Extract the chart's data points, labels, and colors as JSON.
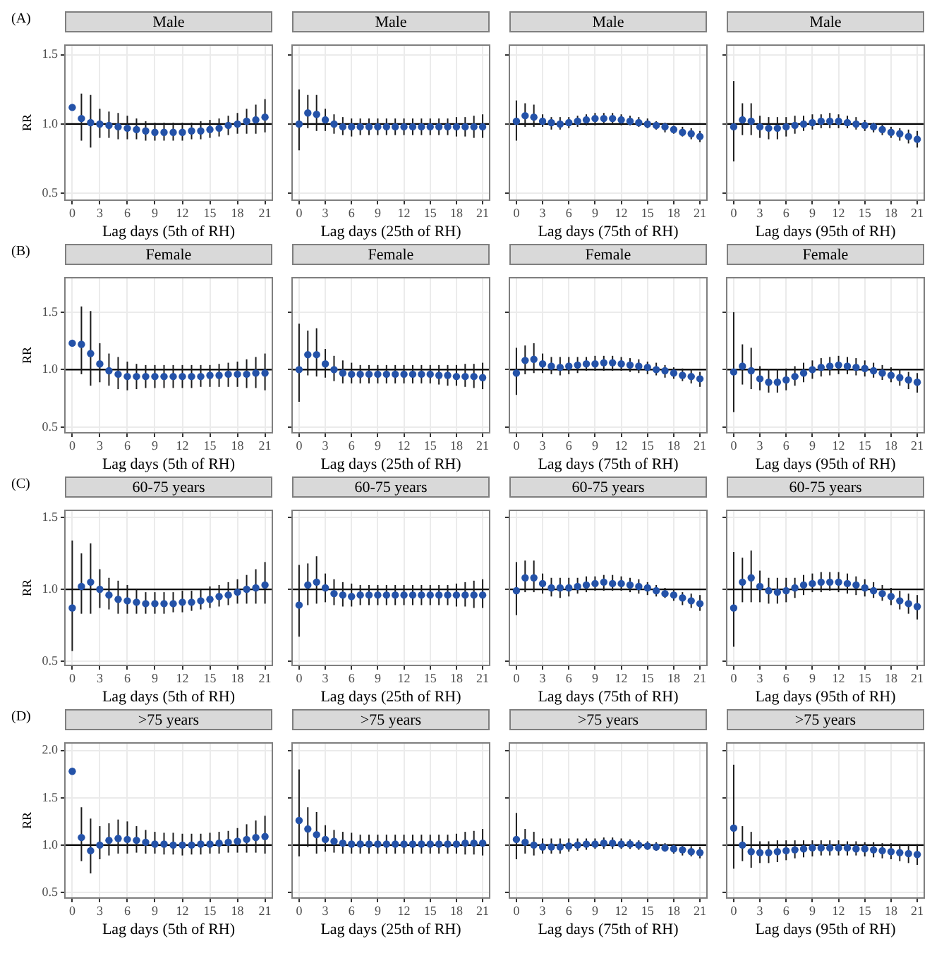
{
  "chart_data": [
    {
      "type": "scatter",
      "title": "Male",
      "annotations": [
        "(A)"
      ],
      "xlabel": "Lag days (5th of RH)",
      "ylabel": "RR",
      "color": "#2452a8",
      "marker": "circle",
      "grid": true,
      "x": [
        0,
        1,
        2,
        3,
        4,
        5,
        6,
        7,
        8,
        9,
        10,
        11,
        12,
        13,
        14,
        15,
        16,
        17,
        18,
        19,
        20,
        21
      ],
      "xlim": [
        -0.8,
        21.8
      ],
      "xticks": [
        0,
        3,
        6,
        9,
        12,
        15,
        18,
        21
      ],
      "ylim": [
        0.45,
        1.57
      ],
      "yticks": [
        {
          "value": 0.5,
          "label": "0.5"
        },
        {
          "value": 1,
          "label": "1.0"
        },
        {
          "value": 1.5,
          "label": "1.5"
        }
      ],
      "ref_lines": [
        {
          "axis": "y",
          "value": 1
        }
      ],
      "values": [
        1.12,
        1.04,
        1.01,
        1.0,
        0.99,
        0.98,
        0.97,
        0.96,
        0.95,
        0.94,
        0.94,
        0.94,
        0.94,
        0.95,
        0.95,
        0.96,
        0.97,
        0.99,
        1.0,
        1.02,
        1.03,
        1.05
      ],
      "errors": [
        null,
        [
          0.88,
          1.22
        ],
        [
          0.83,
          1.21
        ],
        [
          0.9,
          1.11
        ],
        [
          0.9,
          1.09
        ],
        [
          0.89,
          1.08
        ],
        [
          0.89,
          1.06
        ],
        [
          0.89,
          1.04
        ],
        [
          0.88,
          1.02
        ],
        [
          0.88,
          1.01
        ],
        [
          0.88,
          1.01
        ],
        [
          0.88,
          1.01
        ],
        [
          0.88,
          1.01
        ],
        [
          0.89,
          1.01
        ],
        [
          0.89,
          1.02
        ],
        [
          0.9,
          1.03
        ],
        [
          0.91,
          1.04
        ],
        [
          0.92,
          1.06
        ],
        [
          0.93,
          1.08
        ],
        [
          0.93,
          1.11
        ],
        [
          0.93,
          1.14
        ],
        [
          0.94,
          1.18
        ]
      ]
    },
    {
      "type": "scatter",
      "title": "Male",
      "xlabel": "Lag days (25th of RH)",
      "tick_labels": "x",
      "color": "#2452a8",
      "marker": "circle",
      "grid": true,
      "x": [
        0,
        1,
        2,
        3,
        4,
        5,
        6,
        7,
        8,
        9,
        10,
        11,
        12,
        13,
        14,
        15,
        16,
        17,
        18,
        19,
        20,
        21
      ],
      "xlim": [
        -0.8,
        21.8
      ],
      "xticks": [
        0,
        3,
        6,
        9,
        12,
        15,
        18,
        21
      ],
      "ylim": [
        0.45,
        1.57
      ],
      "yticks": [
        0.5,
        1,
        1.5
      ],
      "ref_lines": [
        {
          "axis": "y",
          "value": 1
        }
      ],
      "values": [
        1.0,
        1.08,
        1.07,
        1.03,
        1.0,
        0.98,
        0.98,
        0.98,
        0.98,
        0.98,
        0.98,
        0.98,
        0.98,
        0.98,
        0.98,
        0.98,
        0.98,
        0.98,
        0.98,
        0.98,
        0.98,
        0.98
      ],
      "errors": [
        [
          0.81,
          1.25
        ],
        [
          0.97,
          1.21
        ],
        [
          0.95,
          1.21
        ],
        [
          0.95,
          1.11
        ],
        [
          0.93,
          1.07
        ],
        [
          0.92,
          1.05
        ],
        [
          0.91,
          1.04
        ],
        [
          0.92,
          1.04
        ],
        [
          0.92,
          1.04
        ],
        [
          0.92,
          1.04
        ],
        [
          0.92,
          1.04
        ],
        [
          0.92,
          1.04
        ],
        [
          0.92,
          1.04
        ],
        [
          0.92,
          1.04
        ],
        [
          0.92,
          1.04
        ],
        [
          0.92,
          1.04
        ],
        [
          0.92,
          1.04
        ],
        [
          0.92,
          1.04
        ],
        [
          0.91,
          1.05
        ],
        [
          0.91,
          1.05
        ],
        [
          0.9,
          1.06
        ],
        [
          0.9,
          1.07
        ]
      ]
    },
    {
      "type": "scatter",
      "title": "Male",
      "xlabel": "Lag days (75th of RH)",
      "tick_labels": "x",
      "color": "#2452a8",
      "marker": "circle",
      "grid": true,
      "x": [
        0,
        1,
        2,
        3,
        4,
        5,
        6,
        7,
        8,
        9,
        10,
        11,
        12,
        13,
        14,
        15,
        16,
        17,
        18,
        19,
        20,
        21
      ],
      "xlim": [
        -0.8,
        21.8
      ],
      "xticks": [
        0,
        3,
        6,
        9,
        12,
        15,
        18,
        21
      ],
      "ylim": [
        0.45,
        1.57
      ],
      "yticks": [
        0.5,
        1,
        1.5
      ],
      "ref_lines": [
        {
          "axis": "y",
          "value": 1
        }
      ],
      "values": [
        1.02,
        1.06,
        1.05,
        1.02,
        1.01,
        1.0,
        1.01,
        1.02,
        1.03,
        1.04,
        1.04,
        1.04,
        1.03,
        1.02,
        1.01,
        1.0,
        0.99,
        0.98,
        0.96,
        0.94,
        0.93,
        0.91
      ],
      "errors": [
        [
          0.88,
          1.17
        ],
        [
          0.98,
          1.15
        ],
        [
          0.98,
          1.14
        ],
        [
          0.98,
          1.07
        ],
        [
          0.96,
          1.05
        ],
        [
          0.96,
          1.05
        ],
        [
          0.97,
          1.05
        ],
        [
          0.98,
          1.06
        ],
        [
          0.99,
          1.07
        ],
        [
          0.99,
          1.08
        ],
        [
          1.0,
          1.08
        ],
        [
          1.0,
          1.08
        ],
        [
          0.99,
          1.07
        ],
        [
          0.99,
          1.06
        ],
        [
          0.98,
          1.05
        ],
        [
          0.97,
          1.04
        ],
        [
          0.96,
          1.02
        ],
        [
          0.94,
          1.01
        ],
        [
          0.93,
          0.99
        ],
        [
          0.91,
          0.98
        ],
        [
          0.89,
          0.97
        ],
        [
          0.87,
          0.95
        ]
      ]
    },
    {
      "type": "scatter",
      "title": "Male",
      "xlabel": "Lag days (95th of RH)",
      "tick_labels": "x",
      "color": "#2452a8",
      "marker": "circle",
      "grid": true,
      "x": [
        0,
        1,
        2,
        3,
        4,
        5,
        6,
        7,
        8,
        9,
        10,
        11,
        12,
        13,
        14,
        15,
        16,
        17,
        18,
        19,
        20,
        21
      ],
      "xlim": [
        -0.8,
        21.8
      ],
      "xticks": [
        0,
        3,
        6,
        9,
        12,
        15,
        18,
        21
      ],
      "ylim": [
        0.45,
        1.57
      ],
      "yticks": [
        0.5,
        1,
        1.5
      ],
      "ref_lines": [
        {
          "axis": "y",
          "value": 1
        }
      ],
      "values": [
        0.98,
        1.03,
        1.02,
        0.98,
        0.97,
        0.97,
        0.98,
        0.99,
        1.0,
        1.01,
        1.02,
        1.02,
        1.02,
        1.01,
        1.0,
        0.99,
        0.98,
        0.96,
        0.94,
        0.93,
        0.91,
        0.89
      ],
      "errors": [
        [
          0.73,
          1.31
        ],
        [
          0.92,
          1.15
        ],
        [
          0.92,
          1.15
        ],
        [
          0.9,
          1.06
        ],
        [
          0.89,
          1.05
        ],
        [
          0.89,
          1.05
        ],
        [
          0.91,
          1.05
        ],
        [
          0.93,
          1.06
        ],
        [
          0.95,
          1.06
        ],
        [
          0.96,
          1.07
        ],
        [
          0.97,
          1.07
        ],
        [
          0.97,
          1.08
        ],
        [
          0.97,
          1.07
        ],
        [
          0.97,
          1.06
        ],
        [
          0.96,
          1.05
        ],
        [
          0.95,
          1.03
        ],
        [
          0.94,
          1.01
        ],
        [
          0.92,
          1.0
        ],
        [
          0.9,
          0.98
        ],
        [
          0.88,
          0.97
        ],
        [
          0.86,
          0.96
        ],
        [
          0.83,
          0.95
        ]
      ]
    },
    {
      "type": "scatter",
      "title": "Female",
      "annotations": [
        "(B)"
      ],
      "xlabel": "Lag days (5th of RH)",
      "ylabel": "RR",
      "color": "#2452a8",
      "marker": "circle",
      "grid": true,
      "x": [
        0,
        1,
        2,
        3,
        4,
        5,
        6,
        7,
        8,
        9,
        10,
        11,
        12,
        13,
        14,
        15,
        16,
        17,
        18,
        19,
        20,
        21
      ],
      "xlim": [
        -0.8,
        21.8
      ],
      "xticks": [
        0,
        3,
        6,
        9,
        12,
        15,
        18,
        21
      ],
      "ylim": [
        0.45,
        1.8
      ],
      "yticks": [
        {
          "value": 0.5,
          "label": "0.5"
        },
        {
          "value": 1,
          "label": "1.0"
        },
        {
          "value": 1.5,
          "label": "1.5"
        }
      ],
      "ref_lines": [
        {
          "axis": "y",
          "value": 1
        }
      ],
      "values": [
        1.23,
        1.22,
        1.14,
        1.05,
        0.99,
        0.96,
        0.94,
        0.94,
        0.94,
        0.94,
        0.94,
        0.94,
        0.94,
        0.94,
        0.94,
        0.95,
        0.95,
        0.96,
        0.96,
        0.96,
        0.97,
        0.97
      ],
      "errors": [
        null,
        [
          0.96,
          1.55
        ],
        [
          0.86,
          1.51
        ],
        [
          0.89,
          1.23
        ],
        [
          0.86,
          1.14
        ],
        [
          0.83,
          1.11
        ],
        [
          0.82,
          1.07
        ],
        [
          0.83,
          1.05
        ],
        [
          0.84,
          1.04
        ],
        [
          0.84,
          1.04
        ],
        [
          0.84,
          1.04
        ],
        [
          0.84,
          1.04
        ],
        [
          0.84,
          1.04
        ],
        [
          0.84,
          1.04
        ],
        [
          0.85,
          1.04
        ],
        [
          0.85,
          1.04
        ],
        [
          0.85,
          1.05
        ],
        [
          0.85,
          1.06
        ],
        [
          0.85,
          1.07
        ],
        [
          0.84,
          1.09
        ],
        [
          0.84,
          1.11
        ],
        [
          0.82,
          1.14
        ]
      ]
    },
    {
      "type": "scatter",
      "title": "Female",
      "xlabel": "Lag days (25th of RH)",
      "tick_labels": "x",
      "color": "#2452a8",
      "marker": "circle",
      "grid": true,
      "x": [
        0,
        1,
        2,
        3,
        4,
        5,
        6,
        7,
        8,
        9,
        10,
        11,
        12,
        13,
        14,
        15,
        16,
        17,
        18,
        19,
        20,
        21
      ],
      "xlim": [
        -0.8,
        21.8
      ],
      "xticks": [
        0,
        3,
        6,
        9,
        12,
        15,
        18,
        21
      ],
      "ylim": [
        0.45,
        1.8
      ],
      "yticks": [
        0.5,
        1,
        1.5
      ],
      "ref_lines": [
        {
          "axis": "y",
          "value": 1
        }
      ],
      "values": [
        1.0,
        1.13,
        1.13,
        1.05,
        1.0,
        0.97,
        0.96,
        0.96,
        0.96,
        0.96,
        0.96,
        0.96,
        0.96,
        0.96,
        0.96,
        0.96,
        0.95,
        0.95,
        0.94,
        0.94,
        0.94,
        0.93
      ],
      "errors": [
        [
          0.72,
          1.4
        ],
        [
          0.95,
          1.34
        ],
        [
          0.94,
          1.36
        ],
        [
          0.93,
          1.18
        ],
        [
          0.9,
          1.12
        ],
        [
          0.88,
          1.08
        ],
        [
          0.88,
          1.06
        ],
        [
          0.88,
          1.04
        ],
        [
          0.88,
          1.04
        ],
        [
          0.88,
          1.04
        ],
        [
          0.88,
          1.04
        ],
        [
          0.88,
          1.04
        ],
        [
          0.88,
          1.04
        ],
        [
          0.88,
          1.04
        ],
        [
          0.88,
          1.04
        ],
        [
          0.88,
          1.04
        ],
        [
          0.87,
          1.04
        ],
        [
          0.86,
          1.04
        ],
        [
          0.86,
          1.04
        ],
        [
          0.85,
          1.05
        ],
        [
          0.84,
          1.05
        ],
        [
          0.83,
          1.06
        ]
      ]
    },
    {
      "type": "scatter",
      "title": "Female",
      "xlabel": "Lag days (75th of RH)",
      "tick_labels": "x",
      "color": "#2452a8",
      "marker": "circle",
      "grid": true,
      "x": [
        0,
        1,
        2,
        3,
        4,
        5,
        6,
        7,
        8,
        9,
        10,
        11,
        12,
        13,
        14,
        15,
        16,
        17,
        18,
        19,
        20,
        21
      ],
      "xlim": [
        -0.8,
        21.8
      ],
      "xticks": [
        0,
        3,
        6,
        9,
        12,
        15,
        18,
        21
      ],
      "ylim": [
        0.45,
        1.8
      ],
      "yticks": [
        0.5,
        1,
        1.5
      ],
      "ref_lines": [
        {
          "axis": "y",
          "value": 1
        }
      ],
      "values": [
        0.97,
        1.08,
        1.09,
        1.05,
        1.03,
        1.02,
        1.03,
        1.04,
        1.05,
        1.05,
        1.06,
        1.06,
        1.05,
        1.04,
        1.03,
        1.02,
        1.0,
        0.99,
        0.97,
        0.95,
        0.94,
        0.92
      ],
      "errors": [
        [
          0.78,
          1.19
        ],
        [
          0.96,
          1.21
        ],
        [
          0.97,
          1.23
        ],
        [
          0.97,
          1.14
        ],
        [
          0.96,
          1.11
        ],
        [
          0.95,
          1.11
        ],
        [
          0.96,
          1.11
        ],
        [
          0.97,
          1.11
        ],
        [
          0.99,
          1.11
        ],
        [
          0.99,
          1.12
        ],
        [
          0.99,
          1.12
        ],
        [
          0.99,
          1.12
        ],
        [
          0.99,
          1.11
        ],
        [
          0.98,
          1.1
        ],
        [
          0.97,
          1.09
        ],
        [
          0.96,
          1.07
        ],
        [
          0.95,
          1.06
        ],
        [
          0.93,
          1.04
        ],
        [
          0.92,
          1.02
        ],
        [
          0.9,
          1.01
        ],
        [
          0.88,
          1.0
        ],
        [
          0.85,
          0.98
        ]
      ]
    },
    {
      "type": "scatter",
      "title": "Female",
      "xlabel": "Lag days (95th of RH)",
      "tick_labels": "x",
      "color": "#2452a8",
      "marker": "circle",
      "grid": true,
      "x": [
        0,
        1,
        2,
        3,
        4,
        5,
        6,
        7,
        8,
        9,
        10,
        11,
        12,
        13,
        14,
        15,
        16,
        17,
        18,
        19,
        20,
        21
      ],
      "xlim": [
        -0.8,
        21.8
      ],
      "xticks": [
        0,
        3,
        6,
        9,
        12,
        15,
        18,
        21
      ],
      "ylim": [
        0.45,
        1.8
      ],
      "yticks": [
        0.5,
        1,
        1.5
      ],
      "ref_lines": [
        {
          "axis": "y",
          "value": 1
        }
      ],
      "values": [
        0.98,
        1.03,
        0.99,
        0.92,
        0.89,
        0.89,
        0.91,
        0.94,
        0.97,
        1.0,
        1.02,
        1.03,
        1.04,
        1.03,
        1.02,
        1.01,
        0.99,
        0.97,
        0.95,
        0.93,
        0.91,
        0.89
      ],
      "errors": [
        [
          0.63,
          1.5
        ],
        [
          0.87,
          1.22
        ],
        [
          0.83,
          1.19
        ],
        [
          0.82,
          1.03
        ],
        [
          0.8,
          1.0
        ],
        [
          0.8,
          1.0
        ],
        [
          0.82,
          1.01
        ],
        [
          0.86,
          1.03
        ],
        [
          0.89,
          1.06
        ],
        [
          0.92,
          1.08
        ],
        [
          0.94,
          1.1
        ],
        [
          0.95,
          1.11
        ],
        [
          0.96,
          1.12
        ],
        [
          0.96,
          1.11
        ],
        [
          0.95,
          1.1
        ],
        [
          0.94,
          1.08
        ],
        [
          0.93,
          1.06
        ],
        [
          0.91,
          1.04
        ],
        [
          0.89,
          1.02
        ],
        [
          0.86,
          1.0
        ],
        [
          0.83,
          0.98
        ],
        [
          0.8,
          0.97
        ]
      ]
    },
    {
      "type": "scatter",
      "title": "60-75 years",
      "annotations": [
        "(C)"
      ],
      "xlabel": "Lag days (5th of RH)",
      "ylabel": "RR",
      "color": "#2452a8",
      "marker": "circle",
      "grid": true,
      "x": [
        0,
        1,
        2,
        3,
        4,
        5,
        6,
        7,
        8,
        9,
        10,
        11,
        12,
        13,
        14,
        15,
        16,
        17,
        18,
        19,
        20,
        21
      ],
      "xlim": [
        -0.8,
        21.8
      ],
      "xticks": [
        0,
        3,
        6,
        9,
        12,
        15,
        18,
        21
      ],
      "ylim": [
        0.47,
        1.55
      ],
      "yticks": [
        {
          "value": 0.5,
          "label": "0.5"
        },
        {
          "value": 1,
          "label": "1.0"
        },
        {
          "value": 1.5,
          "label": "1.5"
        }
      ],
      "ref_lines": [
        {
          "axis": "y",
          "value": 1
        }
      ],
      "values": [
        0.87,
        1.02,
        1.05,
        1.0,
        0.96,
        0.93,
        0.92,
        0.91,
        0.9,
        0.9,
        0.9,
        0.9,
        0.91,
        0.91,
        0.92,
        0.93,
        0.95,
        0.96,
        0.98,
        1.0,
        1.01,
        1.03
      ],
      "errors": [
        [
          0.57,
          1.34
        ],
        [
          0.83,
          1.25
        ],
        [
          0.83,
          1.32
        ],
        [
          0.87,
          1.14
        ],
        [
          0.86,
          1.08
        ],
        [
          0.83,
          1.06
        ],
        [
          0.83,
          1.03
        ],
        [
          0.83,
          1.0
        ],
        [
          0.83,
          0.98
        ],
        [
          0.83,
          0.98
        ],
        [
          0.83,
          0.98
        ],
        [
          0.84,
          0.98
        ],
        [
          0.84,
          0.99
        ],
        [
          0.85,
          0.99
        ],
        [
          0.86,
          1.0
        ],
        [
          0.87,
          1.02
        ],
        [
          0.88,
          1.03
        ],
        [
          0.89,
          1.05
        ],
        [
          0.9,
          1.07
        ],
        [
          0.9,
          1.1
        ],
        [
          0.9,
          1.14
        ],
        [
          0.9,
          1.19
        ]
      ]
    },
    {
      "type": "scatter",
      "title": "60-75 years",
      "xlabel": "Lag days (25th of RH)",
      "tick_labels": "x",
      "color": "#2452a8",
      "marker": "circle",
      "grid": true,
      "x": [
        0,
        1,
        2,
        3,
        4,
        5,
        6,
        7,
        8,
        9,
        10,
        11,
        12,
        13,
        14,
        15,
        16,
        17,
        18,
        19,
        20,
        21
      ],
      "xlim": [
        -0.8,
        21.8
      ],
      "xticks": [
        0,
        3,
        6,
        9,
        12,
        15,
        18,
        21
      ],
      "ylim": [
        0.47,
        1.55
      ],
      "yticks": [
        0.5,
        1,
        1.5
      ],
      "ref_lines": [
        {
          "axis": "y",
          "value": 1
        }
      ],
      "values": [
        0.89,
        1.03,
        1.05,
        1.01,
        0.97,
        0.96,
        0.95,
        0.96,
        0.96,
        0.96,
        0.96,
        0.96,
        0.96,
        0.96,
        0.96,
        0.96,
        0.96,
        0.96,
        0.96,
        0.96,
        0.96,
        0.96
      ],
      "errors": [
        [
          0.67,
          1.17
        ],
        [
          0.89,
          1.18
        ],
        [
          0.9,
          1.23
        ],
        [
          0.91,
          1.11
        ],
        [
          0.89,
          1.07
        ],
        [
          0.88,
          1.05
        ],
        [
          0.88,
          1.04
        ],
        [
          0.89,
          1.03
        ],
        [
          0.89,
          1.03
        ],
        [
          0.89,
          1.03
        ],
        [
          0.89,
          1.03
        ],
        [
          0.89,
          1.03
        ],
        [
          0.89,
          1.03
        ],
        [
          0.89,
          1.03
        ],
        [
          0.89,
          1.03
        ],
        [
          0.89,
          1.03
        ],
        [
          0.89,
          1.03
        ],
        [
          0.89,
          1.03
        ],
        [
          0.88,
          1.04
        ],
        [
          0.88,
          1.05
        ],
        [
          0.87,
          1.06
        ],
        [
          0.87,
          1.07
        ]
      ]
    },
    {
      "type": "scatter",
      "title": "60-75 years",
      "xlabel": "Lag days (75th of RH)",
      "tick_labels": "x",
      "color": "#2452a8",
      "marker": "circle",
      "grid": true,
      "x": [
        0,
        1,
        2,
        3,
        4,
        5,
        6,
        7,
        8,
        9,
        10,
        11,
        12,
        13,
        14,
        15,
        16,
        17,
        18,
        19,
        20,
        21
      ],
      "xlim": [
        -0.8,
        21.8
      ],
      "xticks": [
        0,
        3,
        6,
        9,
        12,
        15,
        18,
        21
      ],
      "ylim": [
        0.47,
        1.55
      ],
      "yticks": [
        0.5,
        1,
        1.5
      ],
      "ref_lines": [
        {
          "axis": "y",
          "value": 1
        }
      ],
      "values": [
        0.99,
        1.08,
        1.08,
        1.04,
        1.01,
        1.01,
        1.01,
        1.02,
        1.03,
        1.04,
        1.05,
        1.04,
        1.04,
        1.03,
        1.02,
        1.01,
        0.99,
        0.97,
        0.96,
        0.94,
        0.92,
        0.9
      ],
      "errors": [
        [
          0.82,
          1.19
        ],
        [
          0.98,
          1.2
        ],
        [
          0.98,
          1.2
        ],
        [
          0.97,
          1.11
        ],
        [
          0.95,
          1.08
        ],
        [
          0.94,
          1.08
        ],
        [
          0.95,
          1.08
        ],
        [
          0.97,
          1.08
        ],
        [
          0.98,
          1.09
        ],
        [
          0.99,
          1.09
        ],
        [
          0.99,
          1.1
        ],
        [
          0.99,
          1.1
        ],
        [
          0.99,
          1.09
        ],
        [
          0.98,
          1.08
        ],
        [
          0.97,
          1.07
        ],
        [
          0.96,
          1.05
        ],
        [
          0.95,
          1.03
        ],
        [
          0.94,
          1.01
        ],
        [
          0.92,
          1.0
        ],
        [
          0.89,
          0.98
        ],
        [
          0.87,
          0.97
        ],
        [
          0.85,
          0.96
        ]
      ]
    },
    {
      "type": "scatter",
      "title": "60-75 years",
      "xlabel": "Lag days (95th of RH)",
      "tick_labels": "x",
      "color": "#2452a8",
      "marker": "circle",
      "grid": true,
      "x": [
        0,
        1,
        2,
        3,
        4,
        5,
        6,
        7,
        8,
        9,
        10,
        11,
        12,
        13,
        14,
        15,
        16,
        17,
        18,
        19,
        20,
        21
      ],
      "xlim": [
        -0.8,
        21.8
      ],
      "xticks": [
        0,
        3,
        6,
        9,
        12,
        15,
        18,
        21
      ],
      "ylim": [
        0.47,
        1.55
      ],
      "yticks": [
        0.5,
        1,
        1.5
      ],
      "ref_lines": [
        {
          "axis": "y",
          "value": 1
        }
      ],
      "values": [
        0.87,
        1.05,
        1.08,
        1.02,
        0.99,
        0.98,
        0.99,
        1.01,
        1.03,
        1.04,
        1.05,
        1.05,
        1.05,
        1.04,
        1.03,
        1.01,
        0.99,
        0.97,
        0.95,
        0.92,
        0.9,
        0.88
      ],
      "errors": [
        [
          0.6,
          1.26
        ],
        [
          0.91,
          1.22
        ],
        [
          0.91,
          1.27
        ],
        [
          0.91,
          1.13
        ],
        [
          0.9,
          1.08
        ],
        [
          0.9,
          1.08
        ],
        [
          0.91,
          1.08
        ],
        [
          0.94,
          1.08
        ],
        [
          0.96,
          1.1
        ],
        [
          0.98,
          1.11
        ],
        [
          0.98,
          1.12
        ],
        [
          0.99,
          1.12
        ],
        [
          0.98,
          1.12
        ],
        [
          0.97,
          1.11
        ],
        [
          0.96,
          1.09
        ],
        [
          0.95,
          1.07
        ],
        [
          0.94,
          1.05
        ],
        [
          0.92,
          1.03
        ],
        [
          0.89,
          1.01
        ],
        [
          0.86,
          0.99
        ],
        [
          0.83,
          0.97
        ],
        [
          0.79,
          0.96
        ]
      ]
    },
    {
      "type": "scatter",
      "title": ">75 years",
      "annotations": [
        "(D)"
      ],
      "xlabel": "Lag days (5th of RH)",
      "ylabel": "RR",
      "color": "#2452a8",
      "marker": "circle",
      "grid": true,
      "x": [
        0,
        1,
        2,
        3,
        4,
        5,
        6,
        7,
        8,
        9,
        10,
        11,
        12,
        13,
        14,
        15,
        16,
        17,
        18,
        19,
        20,
        21
      ],
      "xlim": [
        -0.8,
        21.8
      ],
      "xticks": [
        0,
        3,
        6,
        9,
        12,
        15,
        18,
        21
      ],
      "ylim": [
        0.44,
        2.08
      ],
      "yticks": [
        {
          "value": 0.5,
          "label": "0.5"
        },
        {
          "value": 1,
          "label": "1.0"
        },
        {
          "value": 1.5,
          "label": "1.5"
        },
        {
          "value": 2,
          "label": "2.0"
        }
      ],
      "ref_lines": [
        {
          "axis": "y",
          "value": 1
        }
      ],
      "values": [
        1.78,
        1.08,
        0.94,
        1.0,
        1.05,
        1.07,
        1.06,
        1.05,
        1.03,
        1.01,
        1.01,
        1.0,
        1.0,
        1.0,
        1.01,
        1.01,
        1.02,
        1.03,
        1.04,
        1.06,
        1.08,
        1.09
      ],
      "errors": [
        null,
        [
          0.83,
          1.4
        ],
        [
          0.7,
          1.28
        ],
        [
          0.85,
          1.2
        ],
        [
          0.89,
          1.23
        ],
        [
          0.91,
          1.27
        ],
        [
          0.91,
          1.25
        ],
        [
          0.92,
          1.2
        ],
        [
          0.91,
          1.16
        ],
        [
          0.91,
          1.14
        ],
        [
          0.9,
          1.13
        ],
        [
          0.9,
          1.13
        ],
        [
          0.89,
          1.12
        ],
        [
          0.9,
          1.12
        ],
        [
          0.9,
          1.12
        ],
        [
          0.91,
          1.13
        ],
        [
          0.91,
          1.14
        ],
        [
          0.92,
          1.15
        ],
        [
          0.92,
          1.18
        ],
        [
          0.92,
          1.22
        ],
        [
          0.92,
          1.26
        ],
        [
          0.91,
          1.31
        ]
      ]
    },
    {
      "type": "scatter",
      "title": ">75 years",
      "xlabel": "Lag days (25th of RH)",
      "tick_labels": "x",
      "color": "#2452a8",
      "marker": "circle",
      "grid": true,
      "x": [
        0,
        1,
        2,
        3,
        4,
        5,
        6,
        7,
        8,
        9,
        10,
        11,
        12,
        13,
        14,
        15,
        16,
        17,
        18,
        19,
        20,
        21
      ],
      "xlim": [
        -0.8,
        21.8
      ],
      "xticks": [
        0,
        3,
        6,
        9,
        12,
        15,
        18,
        21
      ],
      "ylim": [
        0.44,
        2.08
      ],
      "yticks": [
        0.5,
        1,
        1.5,
        2
      ],
      "ref_lines": [
        {
          "axis": "y",
          "value": 1
        }
      ],
      "values": [
        1.26,
        1.17,
        1.11,
        1.06,
        1.04,
        1.02,
        1.01,
        1.01,
        1.01,
        1.01,
        1.01,
        1.01,
        1.01,
        1.01,
        1.01,
        1.01,
        1.01,
        1.01,
        1.01,
        1.02,
        1.02,
        1.02
      ],
      "errors": [
        [
          0.88,
          1.8
        ],
        [
          0.98,
          1.4
        ],
        [
          0.91,
          1.35
        ],
        [
          0.93,
          1.21
        ],
        [
          0.92,
          1.16
        ],
        [
          0.91,
          1.14
        ],
        [
          0.91,
          1.13
        ],
        [
          0.91,
          1.11
        ],
        [
          0.91,
          1.11
        ],
        [
          0.91,
          1.11
        ],
        [
          0.91,
          1.11
        ],
        [
          0.91,
          1.11
        ],
        [
          0.91,
          1.11
        ],
        [
          0.91,
          1.11
        ],
        [
          0.91,
          1.11
        ],
        [
          0.91,
          1.11
        ],
        [
          0.91,
          1.11
        ],
        [
          0.91,
          1.11
        ],
        [
          0.91,
          1.12
        ],
        [
          0.9,
          1.14
        ],
        [
          0.9,
          1.15
        ],
        [
          0.89,
          1.17
        ]
      ]
    },
    {
      "type": "scatter",
      "title": ">75 years",
      "xlabel": "Lag days (75th of RH)",
      "tick_labels": "x",
      "color": "#2452a8",
      "marker": "circle",
      "grid": true,
      "x": [
        0,
        1,
        2,
        3,
        4,
        5,
        6,
        7,
        8,
        9,
        10,
        11,
        12,
        13,
        14,
        15,
        16,
        17,
        18,
        19,
        20,
        21
      ],
      "xlim": [
        -0.8,
        21.8
      ],
      "xticks": [
        0,
        3,
        6,
        9,
        12,
        15,
        18,
        21
      ],
      "ylim": [
        0.44,
        2.08
      ],
      "yticks": [
        0.5,
        1,
        1.5,
        2
      ],
      "ref_lines": [
        {
          "axis": "y",
          "value": 1
        }
      ],
      "values": [
        1.06,
        1.03,
        1.0,
        0.98,
        0.98,
        0.98,
        0.99,
        1.0,
        1.01,
        1.01,
        1.02,
        1.02,
        1.01,
        1.01,
        1.0,
        0.99,
        0.98,
        0.97,
        0.96,
        0.95,
        0.93,
        0.92
      ],
      "errors": [
        [
          0.85,
          1.34
        ],
        [
          0.91,
          1.17
        ],
        [
          0.89,
          1.14
        ],
        [
          0.91,
          1.07
        ],
        [
          0.91,
          1.07
        ],
        [
          0.91,
          1.07
        ],
        [
          0.93,
          1.07
        ],
        [
          0.94,
          1.07
        ],
        [
          0.95,
          1.07
        ],
        [
          0.96,
          1.07
        ],
        [
          0.96,
          1.08
        ],
        [
          0.96,
          1.08
        ],
        [
          0.96,
          1.07
        ],
        [
          0.96,
          1.06
        ],
        [
          0.95,
          1.05
        ],
        [
          0.95,
          1.04
        ],
        [
          0.94,
          1.03
        ],
        [
          0.93,
          1.02
        ],
        [
          0.91,
          1.01
        ],
        [
          0.89,
          1.0
        ],
        [
          0.88,
          0.99
        ],
        [
          0.86,
          0.98
        ]
      ]
    },
    {
      "type": "scatter",
      "title": ">75 years",
      "xlabel": "Lag days (95th of RH)",
      "tick_labels": "x",
      "color": "#2452a8",
      "marker": "circle",
      "grid": true,
      "x": [
        0,
        1,
        2,
        3,
        4,
        5,
        6,
        7,
        8,
        9,
        10,
        11,
        12,
        13,
        14,
        15,
        16,
        17,
        18,
        19,
        20,
        21
      ],
      "xlim": [
        -0.8,
        21.8
      ],
      "xticks": [
        0,
        3,
        6,
        9,
        12,
        15,
        18,
        21
      ],
      "ylim": [
        0.44,
        2.08
      ],
      "yticks": [
        0.5,
        1,
        1.5,
        2
      ],
      "ref_lines": [
        {
          "axis": "y",
          "value": 1
        }
      ],
      "values": [
        1.18,
        1.0,
        0.93,
        0.92,
        0.92,
        0.93,
        0.94,
        0.95,
        0.96,
        0.97,
        0.97,
        0.97,
        0.97,
        0.97,
        0.96,
        0.96,
        0.95,
        0.94,
        0.93,
        0.92,
        0.91,
        0.9
      ],
      "errors": [
        [
          0.75,
          1.85
        ],
        [
          0.83,
          1.2
        ],
        [
          0.76,
          1.14
        ],
        [
          0.81,
          1.04
        ],
        [
          0.81,
          1.04
        ],
        [
          0.82,
          1.05
        ],
        [
          0.84,
          1.05
        ],
        [
          0.86,
          1.05
        ],
        [
          0.87,
          1.05
        ],
        [
          0.88,
          1.05
        ],
        [
          0.89,
          1.05
        ],
        [
          0.89,
          1.05
        ],
        [
          0.89,
          1.05
        ],
        [
          0.89,
          1.04
        ],
        [
          0.89,
          1.04
        ],
        [
          0.88,
          1.03
        ],
        [
          0.87,
          1.03
        ],
        [
          0.86,
          1.02
        ],
        [
          0.85,
          1.02
        ],
        [
          0.83,
          1.01
        ],
        [
          0.81,
          1.01
        ],
        [
          0.79,
          1.01
        ]
      ]
    }
  ]
}
